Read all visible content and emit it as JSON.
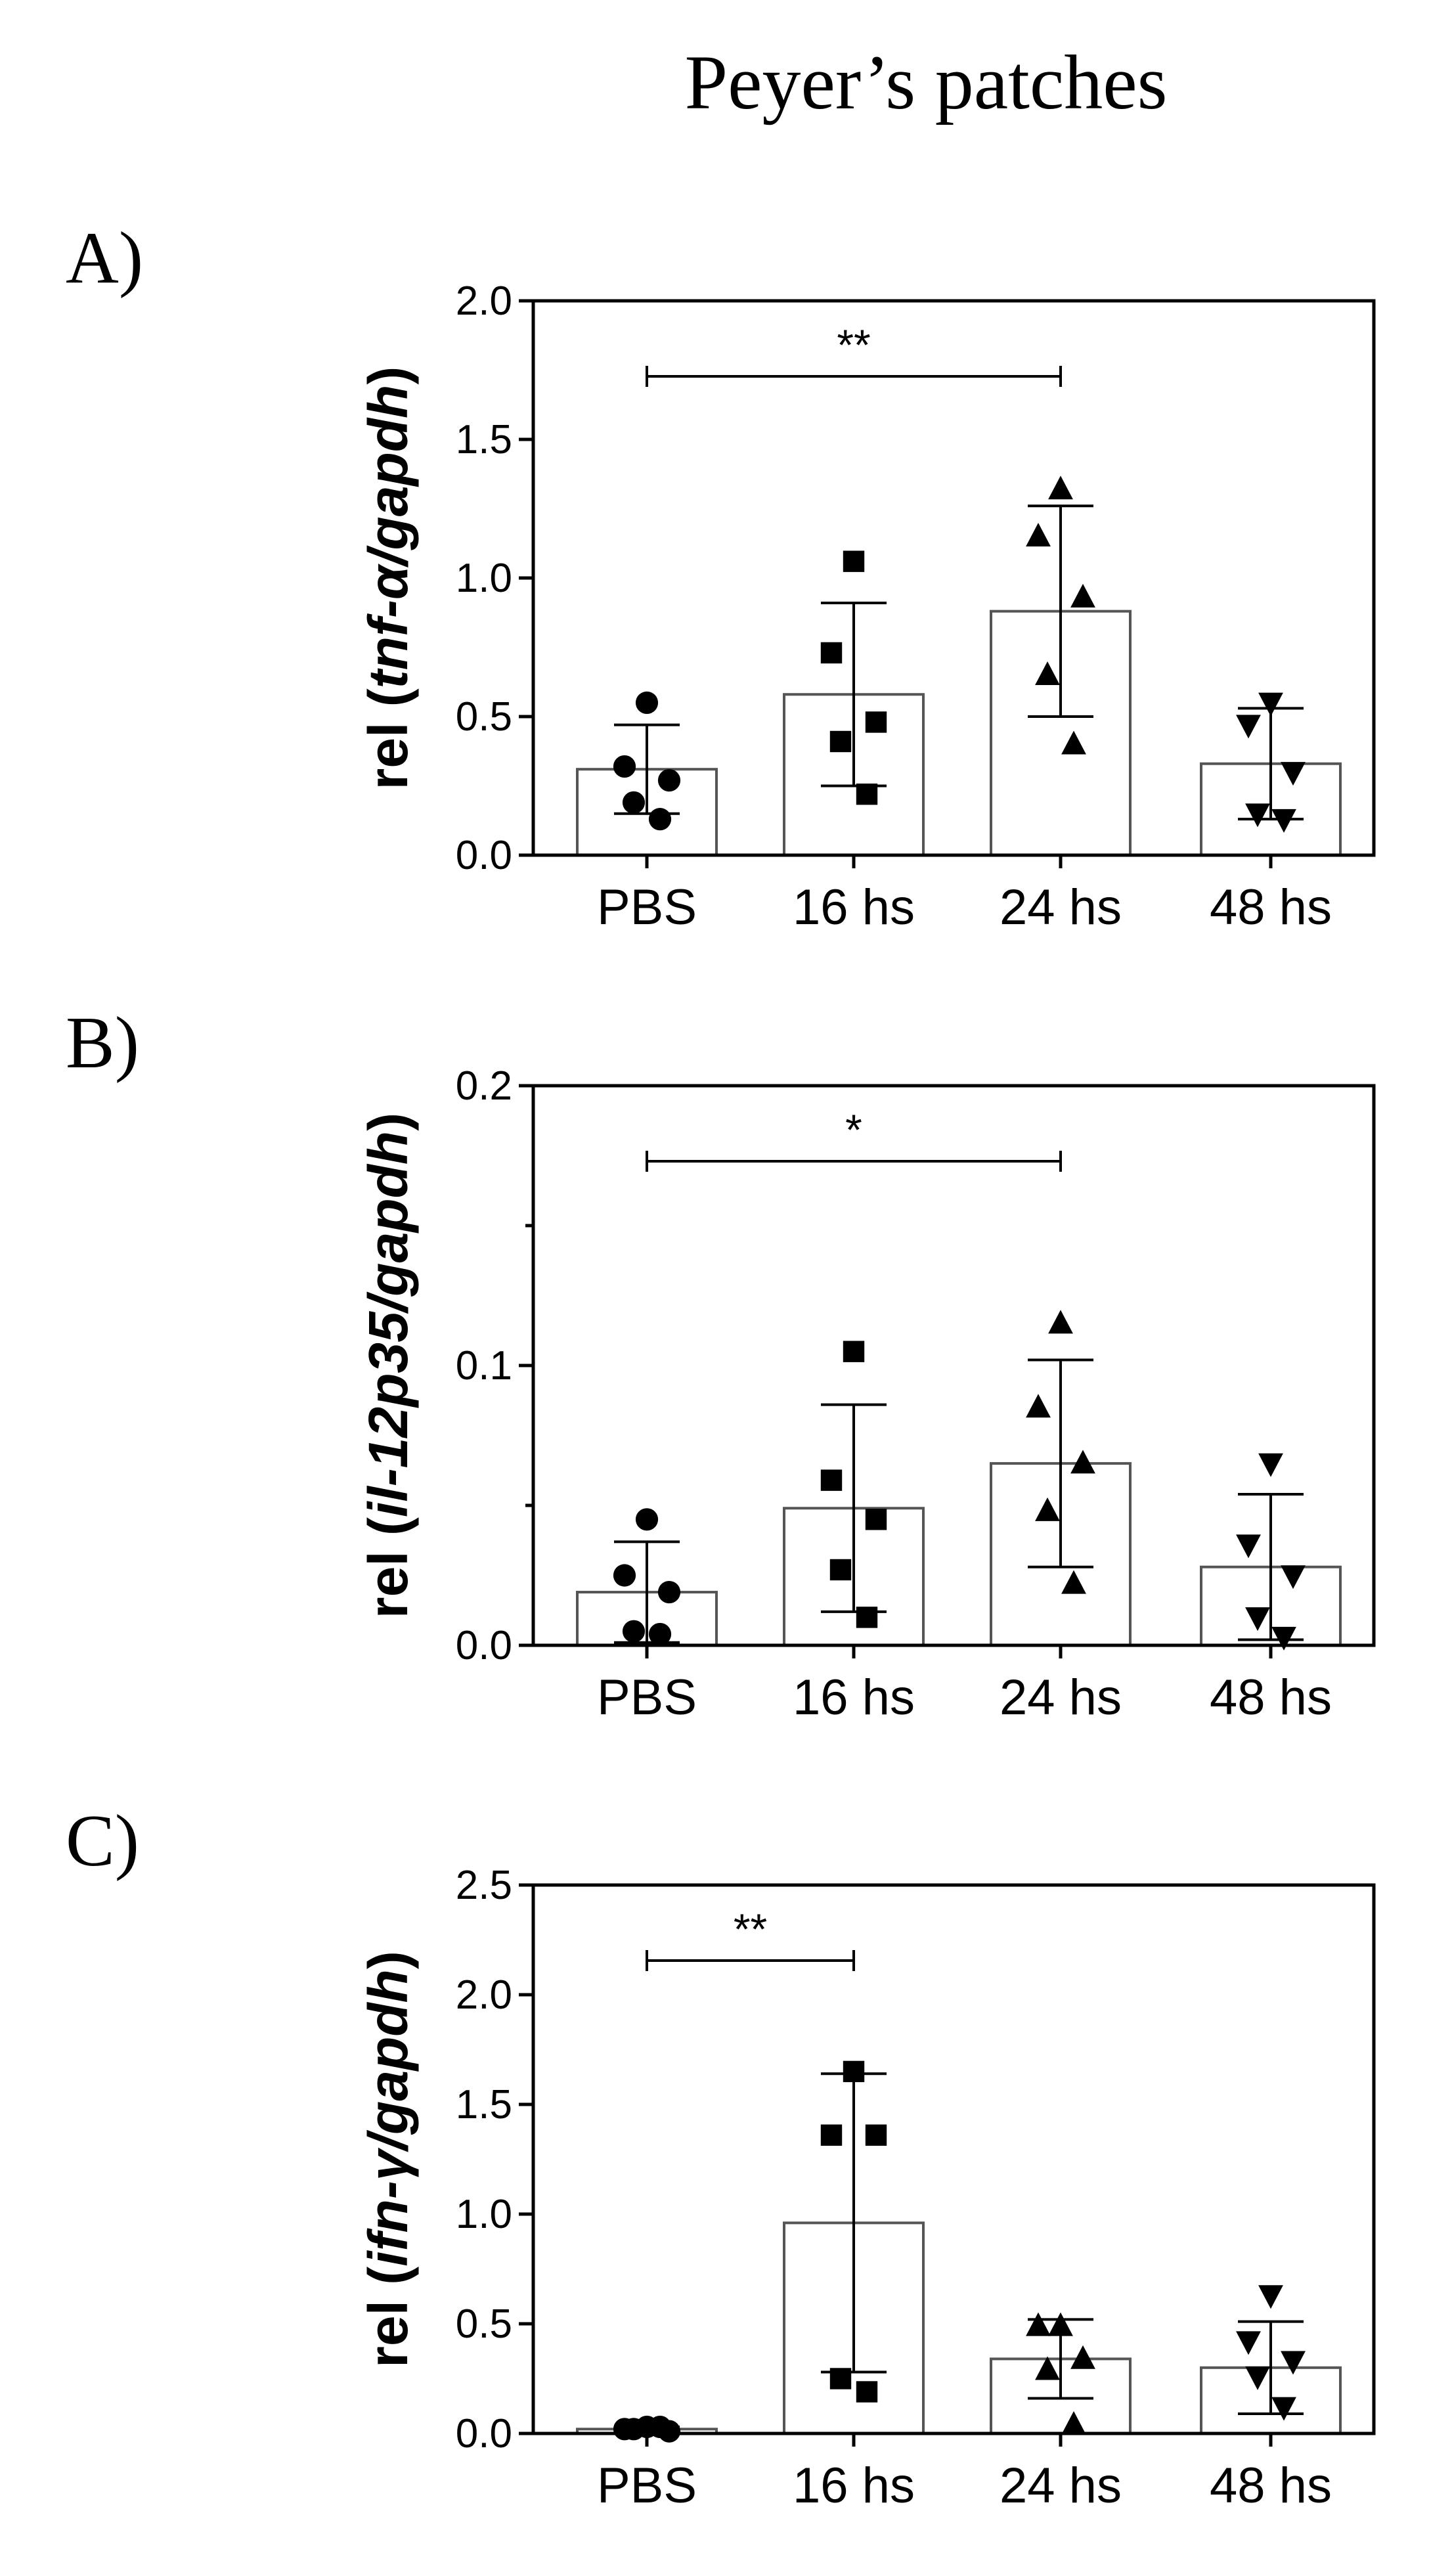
{
  "title": "Peyer’s patches",
  "chart_data": [
    {
      "panel": "A)",
      "type": "bar",
      "ylabel_prefix": "rel (",
      "ylabel_gene": "tnf-α/gapdh",
      "ylabel_suffix": ")",
      "ylim": [
        0,
        2.0
      ],
      "yticks": [
        "0.0",
        "0.5",
        "1.0",
        "1.5",
        "2.0"
      ],
      "ytick_values": [
        0,
        0.5,
        1.0,
        1.5,
        2.0
      ],
      "categories": [
        "PBS",
        "16 hs",
        "24 hs",
        "48 hs"
      ],
      "markers": [
        "circle",
        "square",
        "triangle-up",
        "triangle-down"
      ],
      "values": [
        0.31,
        0.58,
        0.88,
        0.33
      ],
      "errors": [
        0.16,
        0.33,
        0.38,
        0.2
      ],
      "points": [
        [
          0.55,
          0.32,
          0.27,
          0.19,
          0.13
        ],
        [
          1.06,
          0.73,
          0.48,
          0.41,
          0.22
        ],
        [
          1.32,
          1.15,
          0.93,
          0.65,
          0.4
        ],
        [
          0.55,
          0.47,
          0.3,
          0.15,
          0.13
        ]
      ],
      "significance": [
        {
          "from": 0,
          "to": 2,
          "label": "**"
        }
      ]
    },
    {
      "panel": "B)",
      "type": "bar",
      "ylabel_prefix": "rel (",
      "ylabel_gene": "il-12p35/gapdh",
      "ylabel_suffix": ")",
      "ylim": [
        0,
        0.2
      ],
      "yticks": [
        "0.0",
        "0.1",
        "0.2"
      ],
      "ytick_values": [
        0,
        0.1,
        0.2
      ],
      "minor_ticks": [
        0.05,
        0.15
      ],
      "categories": [
        "PBS",
        "16 hs",
        "24 hs",
        "48 hs"
      ],
      "markers": [
        "circle",
        "square",
        "triangle-up",
        "triangle-down"
      ],
      "values": [
        0.019,
        0.049,
        0.065,
        0.028
      ],
      "errors": [
        0.018,
        0.037,
        0.037,
        0.026
      ],
      "points": [
        [
          0.045,
          0.025,
          0.019,
          0.005,
          0.004
        ],
        [
          0.105,
          0.059,
          0.045,
          0.027,
          0.01
        ],
        [
          0.115,
          0.085,
          0.065,
          0.048,
          0.022
        ],
        [
          0.065,
          0.036,
          0.025,
          0.01,
          0.003
        ]
      ],
      "significance": [
        {
          "from": 0,
          "to": 2,
          "label": "*"
        }
      ]
    },
    {
      "panel": "C)",
      "type": "bar",
      "ylabel_prefix": "rel (",
      "ylabel_gene": "ifn-γ/gapdh",
      "ylabel_suffix": ")",
      "ylim": [
        0,
        2.5
      ],
      "yticks": [
        "0.0",
        "0.5",
        "1.0",
        "1.5",
        "2.0",
        "2.5"
      ],
      "ytick_values": [
        0,
        0.5,
        1.0,
        1.5,
        2.0,
        2.5
      ],
      "categories": [
        "PBS",
        "16 hs",
        "24 hs",
        "48 hs"
      ],
      "markers": [
        "circle",
        "square",
        "triangle-up",
        "triangle-down"
      ],
      "values": [
        0.02,
        0.96,
        0.34,
        0.3
      ],
      "errors": [
        0.01,
        0.68,
        0.18,
        0.21
      ],
      "points": [
        [
          0.03,
          0.02,
          0.01,
          0.02,
          0.03
        ],
        [
          1.65,
          1.36,
          1.36,
          0.25,
          0.19
        ],
        [
          0.49,
          0.49,
          0.34,
          0.29,
          0.04
        ],
        [
          0.63,
          0.42,
          0.33,
          0.26,
          0.12
        ]
      ],
      "significance": [
        {
          "from": 0,
          "to": 1,
          "label": "**"
        }
      ]
    }
  ]
}
